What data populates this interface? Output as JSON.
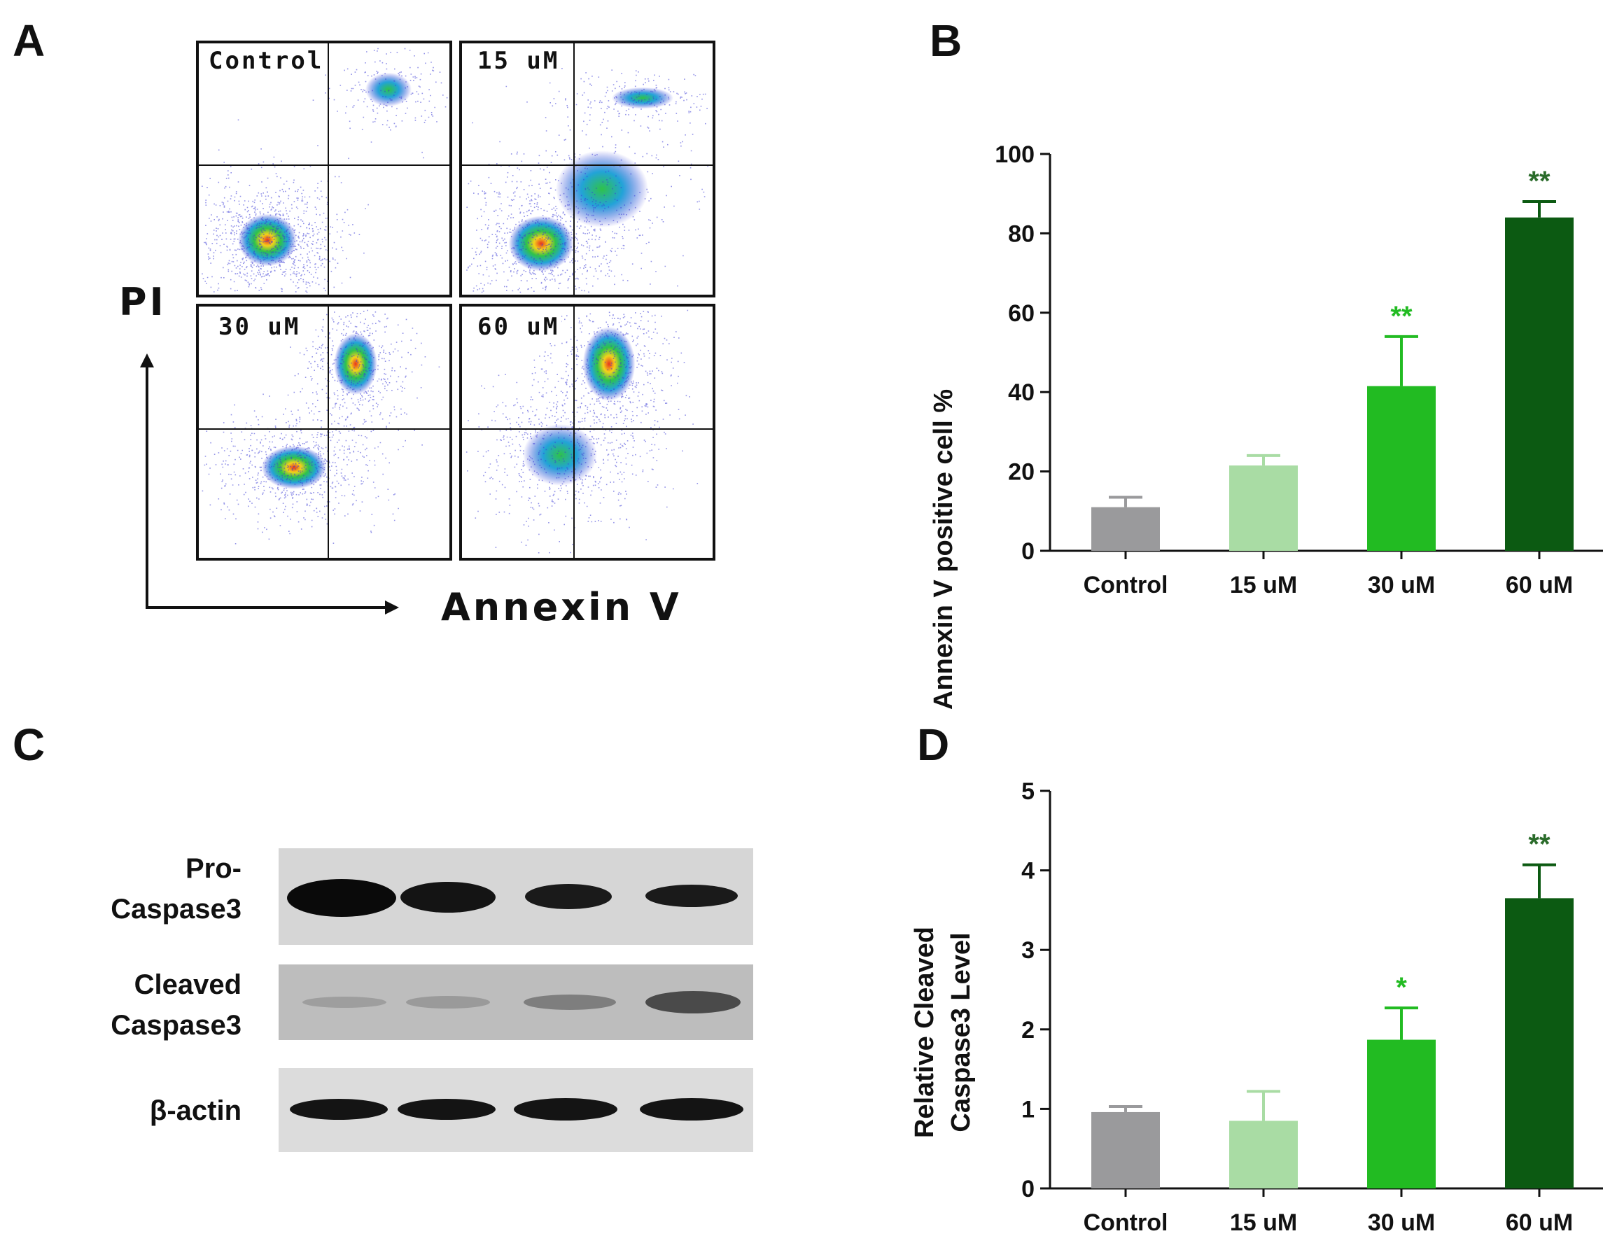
{
  "panel_labels": {
    "a": "A",
    "b": "B",
    "c": "C",
    "d": "D"
  },
  "flow": {
    "quadrants": [
      "Control",
      "15 uM",
      "30 uM",
      "60 uM"
    ],
    "y_axis_label": "PI",
    "x_axis_label": "Annexin V"
  },
  "western": {
    "rows": [
      {
        "line1": "Pro-",
        "line2": "Caspase3"
      },
      {
        "line1": "Cleaved",
        "line2": "Caspase3"
      },
      {
        "line1": "β-actin",
        "line2": ""
      }
    ]
  },
  "colors": {
    "bars": [
      "#9a9a9c",
      "#a9dca4",
      "#22bb22",
      "#0c5a12"
    ],
    "sig": [
      "#22bb22",
      "#2a6b2a"
    ]
  },
  "chart_data": [
    {
      "id": "B",
      "type": "bar",
      "categories": [
        "Control",
        "15 uM",
        "30 uM",
        "60 uM"
      ],
      "values": [
        11,
        21.5,
        41.5,
        84
      ],
      "errors": [
        2.5,
        2.5,
        12.5,
        4
      ],
      "significance": [
        "",
        "",
        "**",
        "**"
      ],
      "ylabel": "Annexin V positive cell %",
      "ylim": [
        0,
        100
      ],
      "yticks": [
        "0",
        "20",
        "40",
        "60",
        "80",
        "100"
      ]
    },
    {
      "id": "D",
      "type": "bar",
      "categories": [
        "Control",
        "15 uM",
        "30 uM",
        "60 uM"
      ],
      "values": [
        0.96,
        0.85,
        1.87,
        3.65
      ],
      "errors": [
        0.07,
        0.37,
        0.4,
        0.42
      ],
      "significance": [
        "",
        "",
        "*",
        "**"
      ],
      "ylabel_line1": "Relative Cleaved",
      "ylabel_line2": "Caspase3 Level",
      "ylim": [
        0,
        5
      ],
      "yticks": [
        "0",
        "1",
        "2",
        "3",
        "4",
        "5"
      ]
    }
  ]
}
